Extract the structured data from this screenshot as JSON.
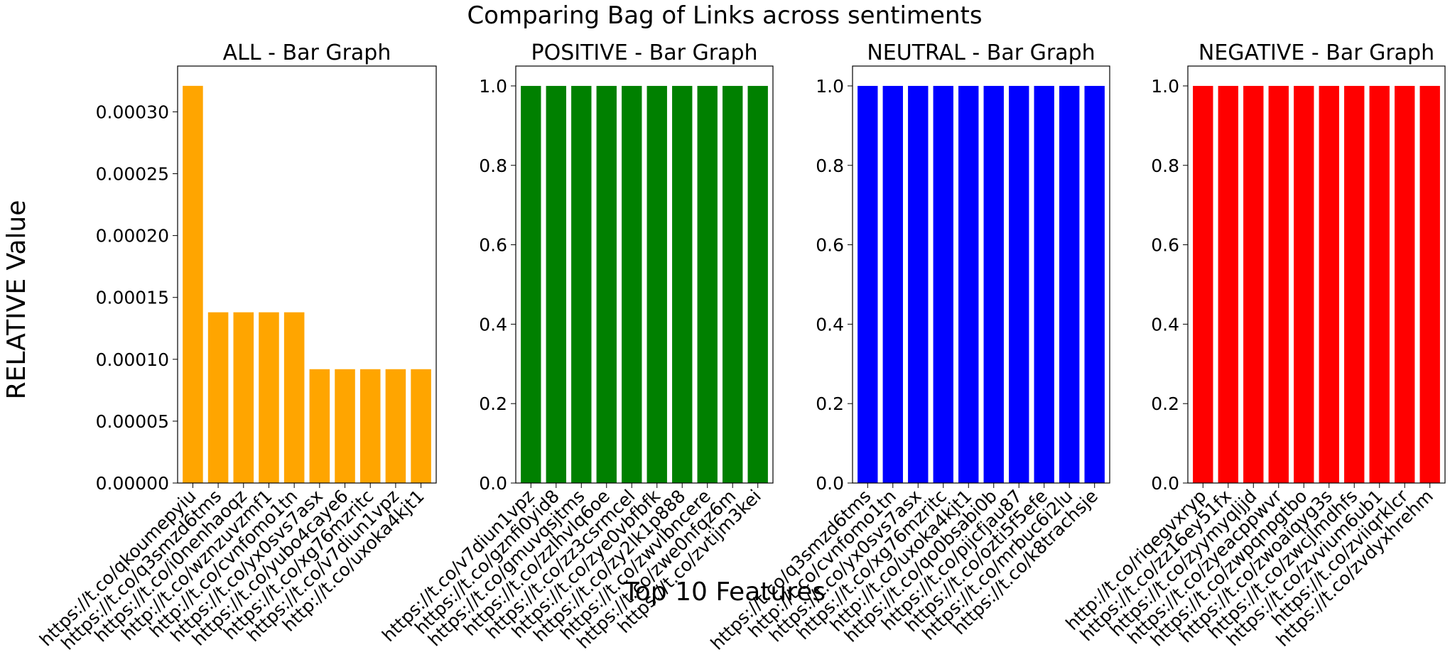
{
  "suptitle": "Comparing Bag of Links across sentiments",
  "ylabel": "RELATIVE Value",
  "xlabel": "Top 10 Features",
  "chart_data": [
    {
      "type": "bar",
      "title": "ALL - Bar Graph",
      "color": "#FFA500",
      "categories": [
        "https://t.co/qkoumepyiu",
        "https://t.co/q3smzd6tms",
        "https://t.co/i0nenhaoqz",
        "http://t.co/wznzuvzmf1",
        "http://t.co/cvnfomo1tn",
        "https://t.co/yx0svs7asx",
        "https://t.co/yubo4caye6",
        "https://t.co/xg76mzritc",
        "https://t.co/v7diun1vpz",
        "http://t.co/uxoka4kjt1"
      ],
      "values": [
        0.000321,
        0.000138,
        0.000138,
        0.000138,
        0.000138,
        9.2e-05,
        9.2e-05,
        9.2e-05,
        9.2e-05,
        9.2e-05
      ],
      "ylim": [
        0,
        0.000337
      ],
      "yticks": [
        0,
        5e-05,
        0.0001,
        0.00015,
        0.0002,
        0.00025,
        0.0003
      ],
      "ytick_labels": [
        "0.00000",
        "0.00005",
        "0.00010",
        "0.00015",
        "0.00020",
        "0.00025",
        "0.00030"
      ],
      "grid": false
    },
    {
      "type": "bar",
      "title": "POSITIVE - Bar Graph",
      "color": "#008000",
      "categories": [
        "https://t.co/v7diun1vpz",
        "https://t.co/gznfi0yid8",
        "https://t.co/gmuvqsjtms",
        "https://t.co/zzlhvlq6oe",
        "https://t.co/zz3csrmcel",
        "https://t.co/zye0vbfbfk",
        "https://t.co/zy2lk1p888",
        "https://t.co/zwvlbncere",
        "https://t.co/zwe0nfqz6m",
        "https://t.co/zvtijm3kei"
      ],
      "values": [
        1,
        1,
        1,
        1,
        1,
        1,
        1,
        1,
        1,
        1
      ],
      "ylim": [
        0,
        1.05
      ],
      "yticks": [
        0,
        0.2,
        0.4,
        0.6,
        0.8,
        1.0
      ],
      "ytick_labels": [
        "0.0",
        "0.2",
        "0.4",
        "0.6",
        "0.8",
        "1.0"
      ],
      "grid": false
    },
    {
      "type": "bar",
      "title": "NEUTRAL - Bar Graph",
      "color": "#0000FF",
      "categories": [
        "https://t.co/q3smzd6tms",
        "http://t.co/cvnfomo1tn",
        "https://t.co/yx0svs7asx",
        "https://t.co/xg76mzritc",
        "http://t.co/uxoka4kjt1",
        "https://t.co/qo0bsabi0b",
        "https://t.co/pijcfjau87",
        "https://t.co/ozti5f5efe",
        "https://t.co/mrbuc6i2lu",
        "https://t.co/k8trachsje"
      ],
      "values": [
        1,
        1,
        1,
        1,
        1,
        1,
        1,
        1,
        1,
        1
      ],
      "ylim": [
        0,
        1.05
      ],
      "yticks": [
        0,
        0.2,
        0.4,
        0.6,
        0.8,
        1.0
      ],
      "ytick_labels": [
        "0.0",
        "0.2",
        "0.4",
        "0.6",
        "0.8",
        "1.0"
      ],
      "grid": false
    },
    {
      "type": "bar",
      "title": "NEGATIVE - Bar Graph",
      "color": "#FF0000",
      "categories": [
        "http://t.co/riqegvxryp",
        "https://t.co/zz16ey51fx",
        "https://t.co/zyymyqljjd",
        "https://t.co/zyeacppwvr",
        "https://t.co/zwpqnpgtbo",
        "https://t.co/zwoaiqyg3s",
        "https://t.co/zwcjlmdhfs",
        "https://t.co/zvvium6ub1",
        "https://t.co/zviiqrklcr",
        "https://t.co/zvdyxhrehm"
      ],
      "values": [
        1,
        1,
        1,
        1,
        1,
        1,
        1,
        1,
        1,
        1
      ],
      "ylim": [
        0,
        1.05
      ],
      "yticks": [
        0,
        0.2,
        0.4,
        0.6,
        0.8,
        1.0
      ],
      "ytick_labels": [
        "0.0",
        "0.2",
        "0.4",
        "0.6",
        "0.8",
        "1.0"
      ],
      "grid": false
    }
  ]
}
